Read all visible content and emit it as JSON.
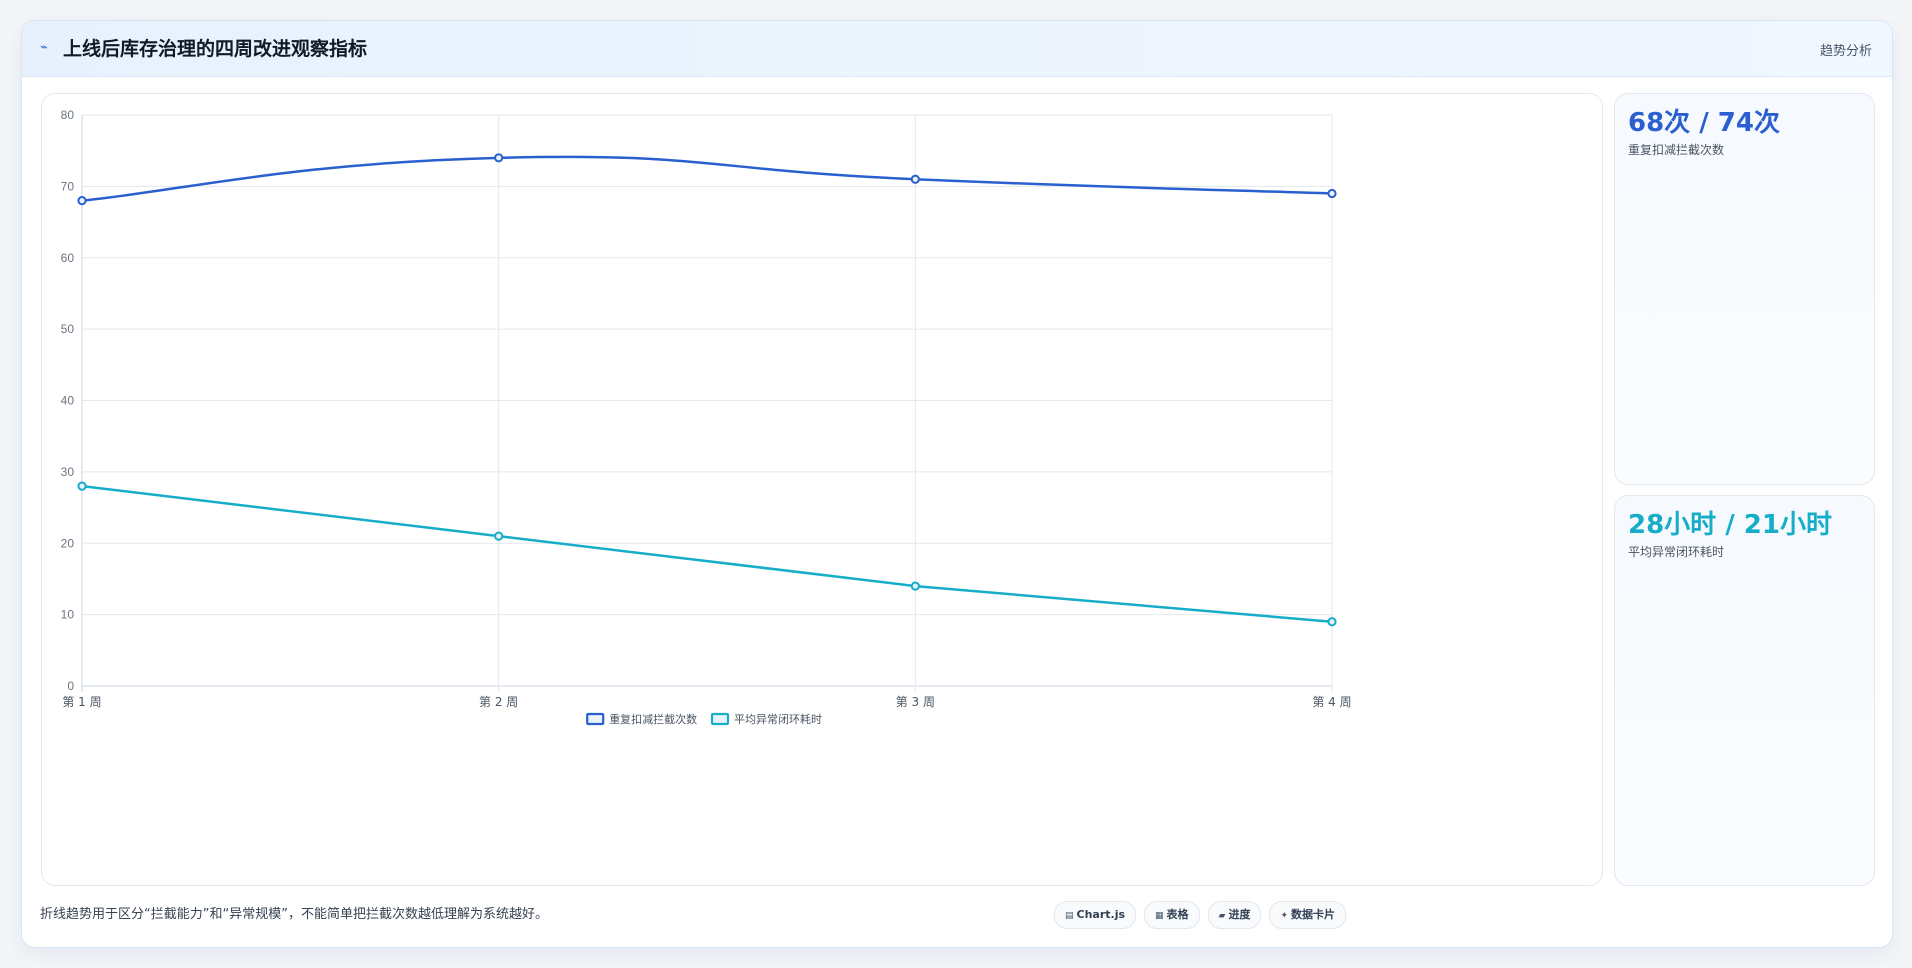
{
  "header": {
    "icon": "trend-line-icon",
    "title": "上线后库存治理的四周改进观察指标",
    "tag": "趋势分析"
  },
  "chart_data": {
    "type": "line",
    "categories": [
      "第 1 周",
      "第 2 周",
      "第 3 周",
      "第 4 周"
    ],
    "series": [
      {
        "name": "重复扣减拦截次数",
        "values": [
          68,
          74,
          71,
          69
        ],
        "color": "#2a5fd0",
        "curve": "smooth"
      },
      {
        "name": "平均异常闭环耗时",
        "values": [
          28,
          21,
          14,
          9
        ],
        "color": "#16adc9",
        "curve": "straight"
      }
    ],
    "yticks": [
      0,
      10,
      20,
      30,
      40,
      50,
      60,
      70,
      80
    ],
    "ylim": [
      0,
      80
    ],
    "grid": true,
    "legend_position": "bottom"
  },
  "stats": [
    {
      "value": "68次 / 74次",
      "label": "重复扣减拦截次数",
      "color": "#2a5fd0"
    },
    {
      "value": "28小时 / 21小时",
      "label": "平均异常闭环耗时",
      "color": "#16adc9"
    }
  ],
  "footer": {
    "note": "折线趋势用于区分“拦截能力”和“异常规模”，不能简单把拦截次数越低理解为系统越好。",
    "chips": [
      {
        "icon": "chart-icon",
        "glyph": "▤",
        "label": "Chart.js"
      },
      {
        "icon": "table-icon",
        "glyph": "▦",
        "label": "表格"
      },
      {
        "icon": "progress-icon",
        "glyph": "▰",
        "label": "进度"
      },
      {
        "icon": "card-icon",
        "glyph": "✦",
        "label": "数据卡片"
      }
    ]
  }
}
